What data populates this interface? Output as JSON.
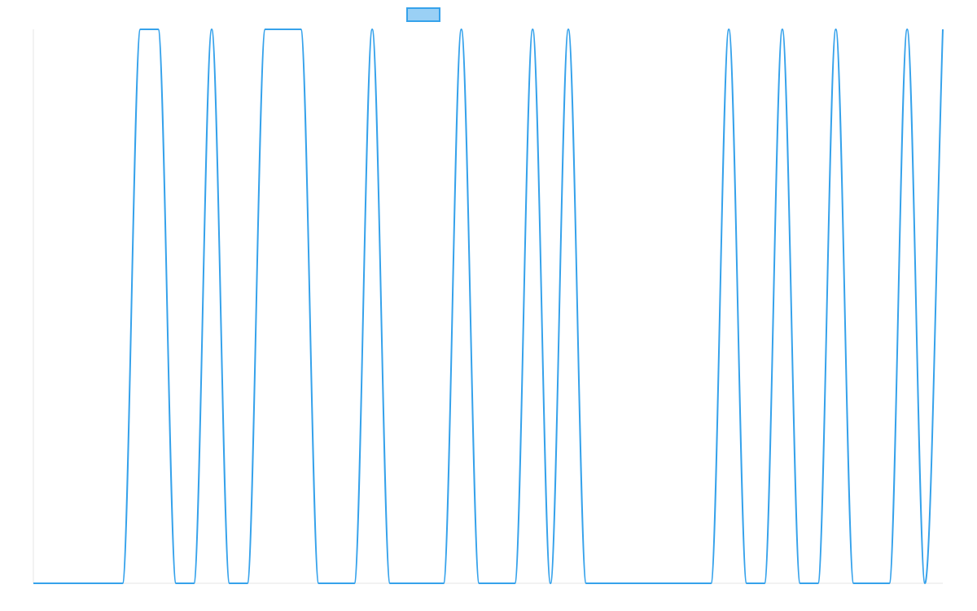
{
  "chart_data": {
    "type": "line",
    "title": "",
    "xlabel": "",
    "ylabel": "",
    "x_range": [
      0,
      51
    ],
    "ylim": [
      0,
      1
    ],
    "grid": false,
    "legend": {
      "position": "top-center",
      "label": ""
    },
    "colors": {
      "line": "#36a2eb",
      "legend_fill": "#9ad0f5",
      "axis": "#e6e6e6"
    },
    "series": [
      {
        "x": [
          0,
          1,
          2,
          3,
          4,
          5,
          6,
          7,
          8,
          9,
          10,
          11,
          12,
          13,
          14,
          15,
          16,
          17,
          18,
          19,
          20,
          21,
          22,
          23,
          24,
          25,
          26,
          27,
          28,
          29,
          30,
          31,
          32,
          33,
          34,
          35,
          36,
          37,
          38,
          39,
          40,
          41,
          42,
          43,
          44,
          45,
          46,
          47,
          48,
          49,
          50,
          51
        ],
        "values": [
          0,
          0,
          0,
          0,
          0,
          0,
          1,
          1,
          0,
          0,
          1,
          0,
          0,
          1,
          1,
          1,
          0,
          0,
          0,
          1,
          0,
          0,
          0,
          0,
          1,
          0,
          0,
          0,
          1,
          0,
          1,
          0,
          0,
          0,
          0,
          0,
          0,
          0,
          0,
          1,
          0,
          0,
          1,
          0,
          0,
          1,
          0,
          0,
          0,
          1,
          0,
          1
        ]
      }
    ]
  }
}
